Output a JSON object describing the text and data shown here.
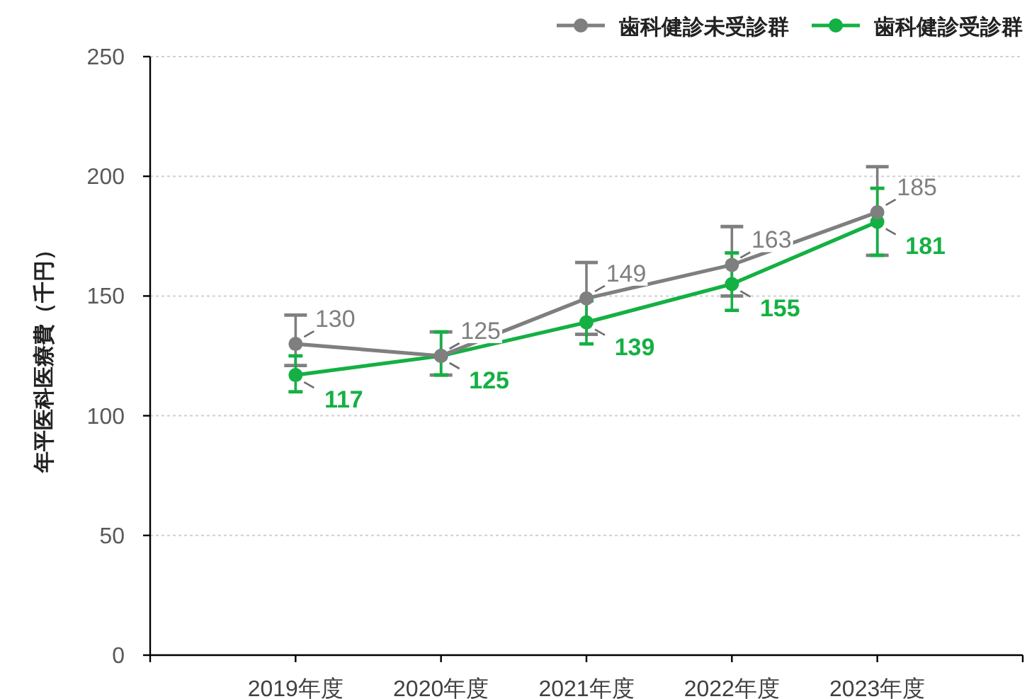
{
  "chart_data": {
    "type": "line",
    "ylabel": "年平医科医療費（千円）",
    "categories": [
      "2019年度",
      "2020年度",
      "2021年度",
      "2022年度",
      "2023年度"
    ],
    "series": [
      {
        "name": "歯科健診未受診群",
        "color": "#7f7f7f",
        "values": [
          130,
          125,
          149,
          163,
          185
        ],
        "errors": [
          [
            121,
            142
          ],
          [
            117,
            135
          ],
          [
            134,
            164
          ],
          [
            150,
            179
          ],
          [
            167,
            204
          ]
        ]
      },
      {
        "name": "歯科健診受診群",
        "color": "#14b043",
        "values": [
          117,
          125,
          139,
          155,
          181
        ],
        "errors": [
          [
            110,
            125
          ],
          [
            117,
            135
          ],
          [
            130,
            148
          ],
          [
            144,
            168
          ],
          [
            167,
            195
          ]
        ]
      }
    ],
    "ylim": [
      0,
      250
    ],
    "yticks": [
      0,
      50,
      100,
      150,
      200,
      250
    ],
    "grid": "y",
    "legend": "top right",
    "marker": "circle",
    "line_style": "solid",
    "data_labels": true
  }
}
